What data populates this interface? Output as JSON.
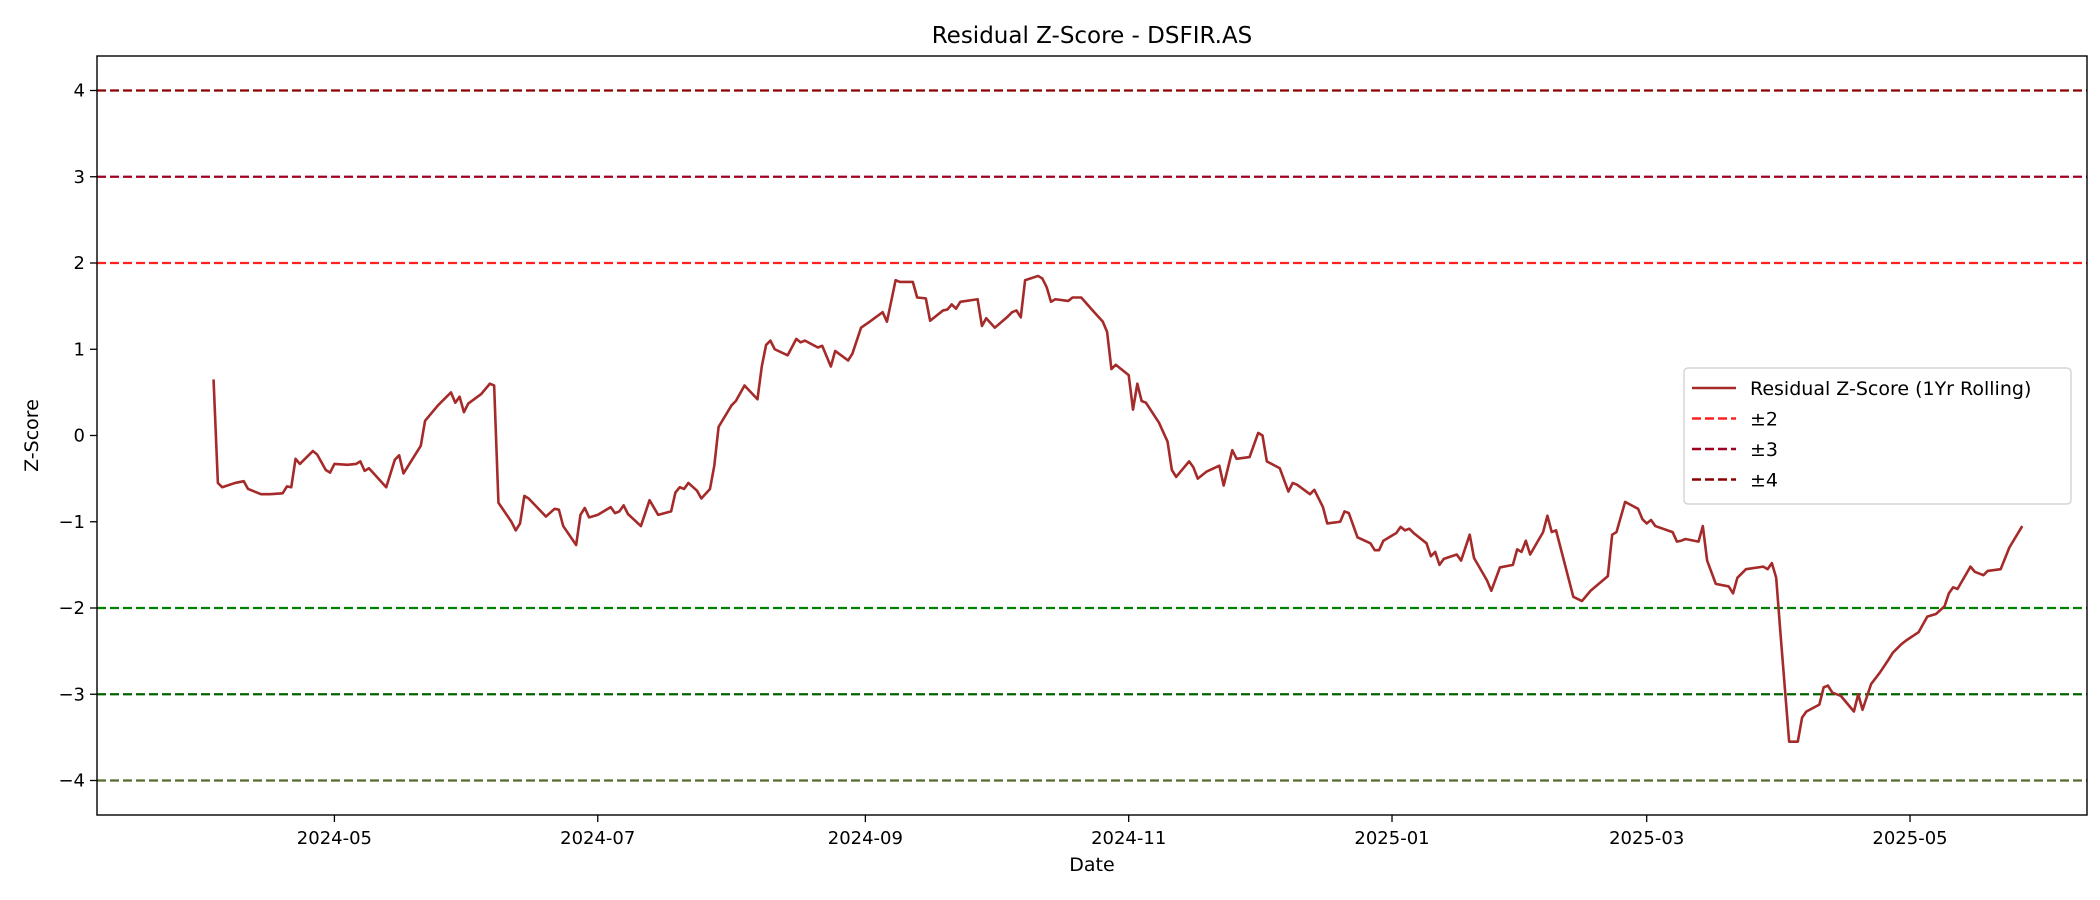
{
  "chart_data": {
    "type": "line",
    "title": "Residual Z-Score - DSFIR.AS",
    "xlabel": "Date",
    "ylabel": "Z-Score",
    "ylim": [
      -4.4,
      4.4
    ],
    "xlim": [
      "2024-03-07",
      "2025-06-11"
    ],
    "y_ticks": [
      4,
      3,
      2,
      1,
      0,
      -1,
      -2,
      -3,
      -4
    ],
    "y_tick_labels": [
      "4",
      "3",
      "2",
      "1",
      "0",
      "−1",
      "−2",
      "−3",
      "−4"
    ],
    "x_ticks": [
      "2024-05-01",
      "2024-07-01",
      "2024-09-01",
      "2024-11-01",
      "2025-01-01",
      "2025-03-01",
      "2025-05-01"
    ],
    "x_tick_labels": [
      "2024-05",
      "2024-07",
      "2024-09",
      "2024-11",
      "2025-01",
      "2025-03",
      "2025-05"
    ],
    "grid": false,
    "legend_position": "center-right",
    "series": [
      {
        "name": "Residual Z-Score (1Yr Rolling)",
        "color": "#a52a2a",
        "style": "solid",
        "points": [
          [
            "2024-04-03",
            0.65
          ],
          [
            "2024-04-04",
            -0.55
          ],
          [
            "2024-04-05",
            -0.6
          ],
          [
            "2024-04-08",
            -0.55
          ],
          [
            "2024-04-10",
            -0.53
          ],
          [
            "2024-04-11",
            -0.62
          ],
          [
            "2024-04-14",
            -0.68
          ],
          [
            "2024-04-16",
            -0.68
          ],
          [
            "2024-04-19",
            -0.67
          ],
          [
            "2024-04-20",
            -0.59
          ],
          [
            "2024-04-21",
            -0.6
          ],
          [
            "2024-04-22",
            -0.27
          ],
          [
            "2024-04-23",
            -0.33
          ],
          [
            "2024-04-26",
            -0.18
          ],
          [
            "2024-04-27",
            -0.22
          ],
          [
            "2024-04-29",
            -0.4
          ],
          [
            "2024-04-30",
            -0.43
          ],
          [
            "2024-05-01",
            -0.33
          ],
          [
            "2024-05-04",
            -0.34
          ],
          [
            "2024-05-06",
            -0.33
          ],
          [
            "2024-05-07",
            -0.3
          ],
          [
            "2024-05-08",
            -0.41
          ],
          [
            "2024-05-09",
            -0.38
          ],
          [
            "2024-05-13",
            -0.6
          ],
          [
            "2024-05-15",
            -0.28
          ],
          [
            "2024-05-16",
            -0.23
          ],
          [
            "2024-05-17",
            -0.44
          ],
          [
            "2024-05-21",
            -0.12
          ],
          [
            "2024-05-22",
            0.17
          ],
          [
            "2024-05-25",
            0.35
          ],
          [
            "2024-05-28",
            0.5
          ],
          [
            "2024-05-29",
            0.38
          ],
          [
            "2024-05-30",
            0.45
          ],
          [
            "2024-05-31",
            0.27
          ],
          [
            "2024-06-01",
            0.37
          ],
          [
            "2024-06-04",
            0.48
          ],
          [
            "2024-06-06",
            0.6
          ],
          [
            "2024-06-07",
            0.58
          ],
          [
            "2024-06-08",
            -0.78
          ],
          [
            "2024-06-11",
            -1.0
          ],
          [
            "2024-06-12",
            -1.1
          ],
          [
            "2024-06-13",
            -1.02
          ],
          [
            "2024-06-14",
            -0.7
          ],
          [
            "2024-06-15",
            -0.73
          ],
          [
            "2024-06-19",
            -0.94
          ],
          [
            "2024-06-21",
            -0.85
          ],
          [
            "2024-06-22",
            -0.86
          ],
          [
            "2024-06-23",
            -1.05
          ],
          [
            "2024-06-26",
            -1.27
          ],
          [
            "2024-06-27",
            -0.92
          ],
          [
            "2024-06-28",
            -0.84
          ],
          [
            "2024-06-29",
            -0.95
          ],
          [
            "2024-07-01",
            -0.92
          ],
          [
            "2024-07-04",
            -0.83
          ],
          [
            "2024-07-05",
            -0.9
          ],
          [
            "2024-07-06",
            -0.88
          ],
          [
            "2024-07-07",
            -0.81
          ],
          [
            "2024-07-08",
            -0.91
          ],
          [
            "2024-07-11",
            -1.05
          ],
          [
            "2024-07-13",
            -0.75
          ],
          [
            "2024-07-15",
            -0.92
          ],
          [
            "2024-07-18",
            -0.88
          ],
          [
            "2024-07-19",
            -0.66
          ],
          [
            "2024-07-20",
            -0.6
          ],
          [
            "2024-07-21",
            -0.62
          ],
          [
            "2024-07-22",
            -0.55
          ],
          [
            "2024-07-24",
            -0.64
          ],
          [
            "2024-07-25",
            -0.73
          ],
          [
            "2024-07-27",
            -0.62
          ],
          [
            "2024-07-28",
            -0.35
          ],
          [
            "2024-07-29",
            0.1
          ],
          [
            "2024-08-01",
            0.35
          ],
          [
            "2024-08-02",
            0.4
          ],
          [
            "2024-08-04",
            0.58
          ],
          [
            "2024-08-07",
            0.42
          ],
          [
            "2024-08-08",
            0.8
          ],
          [
            "2024-08-09",
            1.05
          ],
          [
            "2024-08-10",
            1.1
          ],
          [
            "2024-08-11",
            1.0
          ],
          [
            "2024-08-14",
            0.93
          ],
          [
            "2024-08-16",
            1.12
          ],
          [
            "2024-08-17",
            1.08
          ],
          [
            "2024-08-18",
            1.1
          ],
          [
            "2024-08-21",
            1.02
          ],
          [
            "2024-08-22",
            1.04
          ],
          [
            "2024-08-24",
            0.8
          ],
          [
            "2024-08-25",
            0.98
          ],
          [
            "2024-08-28",
            0.87
          ],
          [
            "2024-08-29",
            0.95
          ],
          [
            "2024-08-31",
            1.25
          ],
          [
            "2024-09-02",
            1.32
          ],
          [
            "2024-09-05",
            1.43
          ],
          [
            "2024-09-06",
            1.32
          ],
          [
            "2024-09-08",
            1.8
          ],
          [
            "2024-09-09",
            1.78
          ],
          [
            "2024-09-12",
            1.78
          ],
          [
            "2024-09-13",
            1.6
          ],
          [
            "2024-09-15",
            1.59
          ],
          [
            "2024-09-16",
            1.33
          ],
          [
            "2024-09-19",
            1.45
          ],
          [
            "2024-09-20",
            1.46
          ],
          [
            "2024-09-21",
            1.52
          ],
          [
            "2024-09-22",
            1.47
          ],
          [
            "2024-09-23",
            1.55
          ],
          [
            "2024-09-27",
            1.58
          ],
          [
            "2024-09-28",
            1.27
          ],
          [
            "2024-09-29",
            1.36
          ],
          [
            "2024-10-01",
            1.25
          ],
          [
            "2024-10-04",
            1.38
          ],
          [
            "2024-10-05",
            1.43
          ],
          [
            "2024-10-06",
            1.45
          ],
          [
            "2024-10-07",
            1.37
          ],
          [
            "2024-10-08",
            1.8
          ],
          [
            "2024-10-11",
            1.85
          ],
          [
            "2024-10-12",
            1.82
          ],
          [
            "2024-10-13",
            1.72
          ],
          [
            "2024-10-14",
            1.55
          ],
          [
            "2024-10-15",
            1.58
          ],
          [
            "2024-10-18",
            1.56
          ],
          [
            "2024-10-19",
            1.6
          ],
          [
            "2024-10-21",
            1.6
          ],
          [
            "2024-10-24",
            1.43
          ],
          [
            "2024-10-26",
            1.32
          ],
          [
            "2024-10-27",
            1.2
          ],
          [
            "2024-10-28",
            0.77
          ],
          [
            "2024-10-29",
            0.82
          ],
          [
            "2024-11-01",
            0.7
          ],
          [
            "2024-11-02",
            0.3
          ],
          [
            "2024-11-03",
            0.6
          ],
          [
            "2024-11-04",
            0.4
          ],
          [
            "2024-11-05",
            0.38
          ],
          [
            "2024-11-08",
            0.15
          ],
          [
            "2024-11-10",
            -0.07
          ],
          [
            "2024-11-11",
            -0.4
          ],
          [
            "2024-11-12",
            -0.48
          ],
          [
            "2024-11-13",
            -0.42
          ],
          [
            "2024-11-15",
            -0.3
          ],
          [
            "2024-11-16",
            -0.37
          ],
          [
            "2024-11-17",
            -0.5
          ],
          [
            "2024-11-19",
            -0.42
          ],
          [
            "2024-11-22",
            -0.35
          ],
          [
            "2024-11-23",
            -0.58
          ],
          [
            "2024-11-25",
            -0.17
          ],
          [
            "2024-11-26",
            -0.27
          ],
          [
            "2024-11-29",
            -0.25
          ],
          [
            "2024-12-01",
            0.03
          ],
          [
            "2024-12-02",
            0.0
          ],
          [
            "2024-12-03",
            -0.3
          ],
          [
            "2024-12-06",
            -0.38
          ],
          [
            "2024-12-08",
            -0.65
          ],
          [
            "2024-12-09",
            -0.55
          ],
          [
            "2024-12-10",
            -0.57
          ],
          [
            "2024-12-13",
            -0.68
          ],
          [
            "2024-12-14",
            -0.63
          ],
          [
            "2024-12-16",
            -0.83
          ],
          [
            "2024-12-17",
            -1.02
          ],
          [
            "2024-12-20",
            -1.0
          ],
          [
            "2024-12-21",
            -0.88
          ],
          [
            "2024-12-22",
            -0.9
          ],
          [
            "2024-12-24",
            -1.18
          ],
          [
            "2024-12-27",
            -1.25
          ],
          [
            "2024-12-28",
            -1.33
          ],
          [
            "2024-12-29",
            -1.33
          ],
          [
            "2024-12-30",
            -1.22
          ],
          [
            "2025-01-02",
            -1.13
          ],
          [
            "2025-01-03",
            -1.06
          ],
          [
            "2025-01-04",
            -1.1
          ],
          [
            "2025-01-05",
            -1.08
          ],
          [
            "2025-01-06",
            -1.13
          ],
          [
            "2025-01-09",
            -1.25
          ],
          [
            "2025-01-10",
            -1.4
          ],
          [
            "2025-01-11",
            -1.35
          ],
          [
            "2025-01-12",
            -1.5
          ],
          [
            "2025-01-13",
            -1.43
          ],
          [
            "2025-01-16",
            -1.38
          ],
          [
            "2025-01-17",
            -1.45
          ],
          [
            "2025-01-19",
            -1.15
          ],
          [
            "2025-01-20",
            -1.42
          ],
          [
            "2025-01-23",
            -1.68
          ],
          [
            "2025-01-24",
            -1.8
          ],
          [
            "2025-01-26",
            -1.53
          ],
          [
            "2025-01-29",
            -1.5
          ],
          [
            "2025-01-30",
            -1.32
          ],
          [
            "2025-01-31",
            -1.35
          ],
          [
            "2025-02-01",
            -1.22
          ],
          [
            "2025-02-02",
            -1.38
          ],
          [
            "2025-02-05",
            -1.12
          ],
          [
            "2025-02-06",
            -0.93
          ],
          [
            "2025-02-07",
            -1.12
          ],
          [
            "2025-02-08",
            -1.1
          ],
          [
            "2025-02-12",
            -1.87
          ],
          [
            "2025-02-14",
            -1.92
          ],
          [
            "2025-02-16",
            -1.8
          ],
          [
            "2025-02-20",
            -1.63
          ],
          [
            "2025-02-21",
            -1.15
          ],
          [
            "2025-02-22",
            -1.12
          ],
          [
            "2025-02-24",
            -0.77
          ],
          [
            "2025-02-27",
            -0.85
          ],
          [
            "2025-02-28",
            -0.97
          ],
          [
            "2025-03-01",
            -1.02
          ],
          [
            "2025-03-02",
            -0.98
          ],
          [
            "2025-03-03",
            -1.05
          ],
          [
            "2025-03-07",
            -1.12
          ],
          [
            "2025-03-08",
            -1.23
          ],
          [
            "2025-03-09",
            -1.22
          ],
          [
            "2025-03-10",
            -1.2
          ],
          [
            "2025-03-13",
            -1.23
          ],
          [
            "2025-03-14",
            -1.05
          ],
          [
            "2025-03-15",
            -1.45
          ],
          [
            "2025-03-17",
            -1.72
          ],
          [
            "2025-03-20",
            -1.75
          ],
          [
            "2025-03-21",
            -1.83
          ],
          [
            "2025-03-22",
            -1.65
          ],
          [
            "2025-03-24",
            -1.55
          ],
          [
            "2025-03-28",
            -1.52
          ],
          [
            "2025-03-29",
            -1.55
          ],
          [
            "2025-03-30",
            -1.48
          ],
          [
            "2025-03-31",
            -1.65
          ],
          [
            "2025-04-01",
            -2.3
          ],
          [
            "2025-04-03",
            -3.55
          ],
          [
            "2025-04-05",
            -3.55
          ],
          [
            "2025-04-06",
            -3.27
          ],
          [
            "2025-04-07",
            -3.2
          ],
          [
            "2025-04-10",
            -3.12
          ],
          [
            "2025-04-11",
            -2.92
          ],
          [
            "2025-04-12",
            -2.9
          ],
          [
            "2025-04-13",
            -2.98
          ],
          [
            "2025-04-15",
            -3.02
          ],
          [
            "2025-04-18",
            -3.2
          ],
          [
            "2025-04-19",
            -3.0
          ],
          [
            "2025-04-20",
            -3.18
          ],
          [
            "2025-04-22",
            -2.88
          ],
          [
            "2025-04-24",
            -2.75
          ],
          [
            "2025-04-26",
            -2.6
          ],
          [
            "2025-04-27",
            -2.52
          ],
          [
            "2025-04-29",
            -2.42
          ],
          [
            "2025-04-30",
            -2.38
          ],
          [
            "2025-05-03",
            -2.28
          ],
          [
            "2025-05-05",
            -2.1
          ],
          [
            "2025-05-07",
            -2.07
          ],
          [
            "2025-05-09",
            -1.98
          ],
          [
            "2025-05-10",
            -1.83
          ],
          [
            "2025-05-11",
            -1.76
          ],
          [
            "2025-05-12",
            -1.78
          ],
          [
            "2025-05-15",
            -1.52
          ],
          [
            "2025-05-16",
            -1.58
          ],
          [
            "2025-05-18",
            -1.62
          ],
          [
            "2025-05-19",
            -1.57
          ],
          [
            "2025-05-22",
            -1.55
          ],
          [
            "2025-05-24",
            -1.3
          ],
          [
            "2025-05-27",
            -1.05
          ]
        ]
      }
    ],
    "reference_lines": [
      {
        "name": "±2",
        "color": "#ff2020",
        "style": "dashed",
        "y": 2,
        "legend": true
      },
      {
        "name": "±3",
        "color": "#a00020",
        "style": "dashed",
        "y": 3,
        "legend": true
      },
      {
        "name": "±4",
        "color": "#8b0000",
        "style": "dashed",
        "y": 4,
        "legend": true
      },
      {
        "name": "±2",
        "color": "#008000",
        "style": "dashed",
        "y": -2,
        "legend": false
      },
      {
        "name": "±3",
        "color": "#006400",
        "style": "dashed",
        "y": -3,
        "legend": false
      },
      {
        "name": "±4",
        "color": "#556b2f",
        "style": "dashed",
        "y": -4,
        "legend": false
      }
    ]
  }
}
